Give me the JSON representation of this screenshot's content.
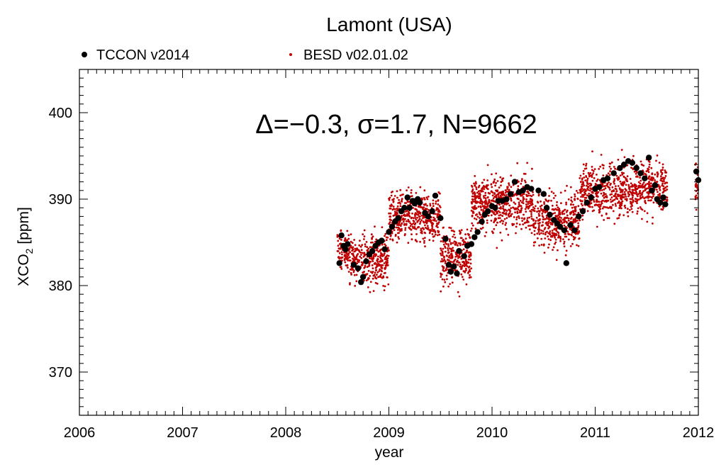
{
  "chart_data": {
    "type": "scatter",
    "title": "Lamont (USA)",
    "xlabel": "year",
    "ylabel": "XCO2 [ppm]",
    "ylabel_main": "XCO",
    "ylabel_sub": "2",
    "ylabel_unit": " [ppm]",
    "annotation": "Δ=−0.3, σ=1.7, N=9662",
    "xlim": [
      2006,
      2012
    ],
    "ylim": [
      365,
      405
    ],
    "xticks": [
      2006,
      2007,
      2008,
      2009,
      2010,
      2011,
      2012
    ],
    "xtick_labels": [
      "2006",
      "2007",
      "2008",
      "2009",
      "2010",
      "2011",
      "2012"
    ],
    "yticks": [
      370,
      380,
      390,
      400
    ],
    "ytick_labels": [
      "370",
      "380",
      "390",
      "400"
    ],
    "grid": false,
    "legend_position": "top",
    "series": [
      {
        "name": "TCCON v2014",
        "color": "#000000",
        "marker": "large-dot",
        "points": [
          [
            2008.52,
            382.6
          ],
          [
            2008.54,
            385.8
          ],
          [
            2008.56,
            384.6
          ],
          [
            2008.58,
            384.2
          ],
          [
            2008.6,
            384.8
          ],
          [
            2008.66,
            382.4
          ],
          [
            2008.7,
            382.0
          ],
          [
            2008.73,
            380.4
          ],
          [
            2008.75,
            381.0
          ],
          [
            2008.78,
            382.8
          ],
          [
            2008.81,
            383.6
          ],
          [
            2008.84,
            384.0
          ],
          [
            2008.87,
            384.6
          ],
          [
            2008.9,
            385.0
          ],
          [
            2008.93,
            385.2
          ],
          [
            2008.96,
            384.2
          ],
          [
            2009.0,
            386.2
          ],
          [
            2009.03,
            386.8
          ],
          [
            2009.06,
            387.4
          ],
          [
            2009.09,
            387.8
          ],
          [
            2009.12,
            388.6
          ],
          [
            2009.15,
            389.0
          ],
          [
            2009.18,
            390.2
          ],
          [
            2009.2,
            389.0
          ],
          [
            2009.23,
            389.8
          ],
          [
            2009.25,
            389.5
          ],
          [
            2009.28,
            390.0
          ],
          [
            2009.3,
            389.6
          ],
          [
            2009.35,
            388.4
          ],
          [
            2009.38,
            388.0
          ],
          [
            2009.42,
            388.6
          ],
          [
            2009.45,
            390.4
          ],
          [
            2009.5,
            387.8
          ],
          [
            2009.55,
            385.4
          ],
          [
            2009.58,
            382.4
          ],
          [
            2009.6,
            381.6
          ],
          [
            2009.63,
            382.2
          ],
          [
            2009.66,
            381.4
          ],
          [
            2009.68,
            384.0
          ],
          [
            2009.73,
            383.4
          ],
          [
            2009.76,
            384.6
          ],
          [
            2009.8,
            384.8
          ],
          [
            2009.83,
            385.6
          ],
          [
            2009.86,
            386.2
          ],
          [
            2009.9,
            387.4
          ],
          [
            2009.93,
            388.2
          ],
          [
            2009.96,
            388.6
          ],
          [
            2010.0,
            389.2
          ],
          [
            2010.03,
            389.0
          ],
          [
            2010.06,
            389.8
          ],
          [
            2010.1,
            389.8
          ],
          [
            2010.14,
            390.0
          ],
          [
            2010.18,
            390.6
          ],
          [
            2010.22,
            392.0
          ],
          [
            2010.26,
            390.8
          ],
          [
            2010.3,
            391.0
          ],
          [
            2010.34,
            391.4
          ],
          [
            2010.38,
            391.2
          ],
          [
            2010.45,
            391.0
          ],
          [
            2010.5,
            390.6
          ],
          [
            2010.53,
            389.0
          ],
          [
            2010.56,
            388.2
          ],
          [
            2010.6,
            387.6
          ],
          [
            2010.63,
            387.2
          ],
          [
            2010.66,
            386.8
          ],
          [
            2010.7,
            386.4
          ],
          [
            2010.72,
            382.6
          ],
          [
            2010.76,
            387.0
          ],
          [
            2010.8,
            386.4
          ],
          [
            2010.84,
            388.0
          ],
          [
            2010.88,
            388.6
          ],
          [
            2010.92,
            389.6
          ],
          [
            2010.96,
            390.2
          ],
          [
            2011.0,
            391.2
          ],
          [
            2011.04,
            391.4
          ],
          [
            2011.08,
            392.2
          ],
          [
            2011.12,
            392.4
          ],
          [
            2011.18,
            393.0
          ],
          [
            2011.24,
            393.6
          ],
          [
            2011.28,
            394.0
          ],
          [
            2011.32,
            394.4
          ],
          [
            2011.36,
            394.2
          ],
          [
            2011.4,
            393.6
          ],
          [
            2011.44,
            393.0
          ],
          [
            2011.48,
            392.4
          ],
          [
            2011.52,
            394.8
          ],
          [
            2011.55,
            391.0
          ],
          [
            2011.58,
            391.6
          ],
          [
            2011.6,
            390.0
          ],
          [
            2011.63,
            389.6
          ],
          [
            2011.66,
            390.2
          ],
          [
            2011.68,
            389.4
          ],
          [
            2011.98,
            393.2
          ],
          [
            2012.0,
            392.2
          ]
        ]
      },
      {
        "name": "BESD v02.01.02",
        "color": "#c00000",
        "marker": "small-dot",
        "segments": [
          [
            2008.5,
            2008.62,
            384.0,
            4.5
          ],
          [
            2008.62,
            2009.0,
            383.0,
            6.5
          ],
          [
            2009.0,
            2009.5,
            388.0,
            6.0
          ],
          [
            2009.5,
            2009.8,
            383.5,
            7.0
          ],
          [
            2009.8,
            2010.4,
            389.5,
            7.0
          ],
          [
            2010.4,
            2010.85,
            387.5,
            7.0
          ],
          [
            2010.85,
            2011.35,
            391.0,
            7.0
          ],
          [
            2011.35,
            2011.7,
            391.5,
            6.5
          ],
          [
            2011.97,
            2012.0,
            391.5,
            6.0
          ]
        ]
      }
    ]
  }
}
